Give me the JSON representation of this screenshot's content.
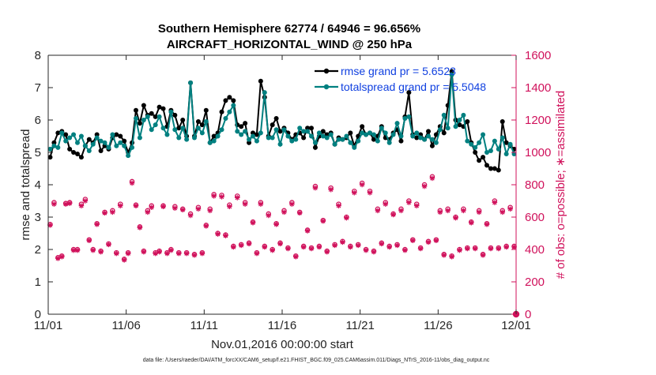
{
  "chart_data": {
    "type": "line",
    "title_line1": "Southern Hemisphere 62774 / 64946 = 96.656%",
    "title_line2": "AIRCRAFT_HORIZONTAL_WIND @ 250 hPa",
    "xlabel": "Nov.01,2016 00:00:00 start",
    "ylabel_left": "rmse and totalspread",
    "ylabel_right": "# of obs: o=possible; ∗=assimilated",
    "footer": "data file: /Users/raeder/DAI/ATM_forcXX/CAM6_setup/f.e21.FHIST_BGC.f09_025.CAM6assim.011/Diags_NTrS_2016-11/obs_diag_output.nc",
    "xlim": [
      0,
      30
    ],
    "ylim_left": [
      0,
      8
    ],
    "ylim_right": [
      0,
      1600
    ],
    "xticks": [
      0,
      5,
      10,
      15,
      20,
      25,
      30
    ],
    "xtick_labels": [
      "11/01",
      "11/06",
      "11/11",
      "11/16",
      "11/21",
      "11/26",
      "12/01"
    ],
    "yticks_left": [
      0,
      1,
      2,
      3,
      4,
      5,
      6,
      7,
      8
    ],
    "yticks_right": [
      0,
      200,
      400,
      600,
      800,
      1000,
      1200,
      1400,
      1600
    ],
    "legend": [
      {
        "name": "rmse",
        "label": "rmse grand pr = 5.6523"
      },
      {
        "name": "totalspread",
        "label": "totalspread grand pr = 5.5048"
      }
    ],
    "colors": {
      "rmse": "#000000",
      "totalspread": "#008080",
      "obs": "#d0115b",
      "legend_text": "#1040e0"
    },
    "x": [
      0.125,
      0.375,
      0.625,
      0.875,
      1.125,
      1.375,
      1.625,
      1.875,
      2.125,
      2.375,
      2.625,
      2.875,
      3.125,
      3.375,
      3.625,
      3.875,
      4.125,
      4.375,
      4.625,
      4.875,
      5.125,
      5.375,
      5.625,
      5.875,
      6.125,
      6.375,
      6.625,
      6.875,
      7.125,
      7.375,
      7.625,
      7.875,
      8.125,
      8.375,
      8.625,
      8.875,
      9.125,
      9.375,
      9.625,
      9.875,
      10.125,
      10.375,
      10.625,
      10.875,
      11.125,
      11.375,
      11.625,
      11.875,
      12.125,
      12.375,
      12.625,
      12.875,
      13.125,
      13.375,
      13.625,
      13.875,
      14.125,
      14.375,
      14.625,
      14.875,
      15.125,
      15.375,
      15.625,
      15.875,
      16.125,
      16.375,
      16.625,
      16.875,
      17.125,
      17.375,
      17.625,
      17.875,
      18.125,
      18.375,
      18.625,
      18.875,
      19.125,
      19.375,
      19.625,
      19.875,
      20.125,
      20.375,
      20.625,
      20.875,
      21.125,
      21.375,
      21.625,
      21.875,
      22.125,
      22.375,
      22.625,
      22.875,
      23.125,
      23.375,
      23.625,
      23.875,
      24.125,
      24.375,
      24.625,
      24.875,
      25.125,
      25.375,
      25.625,
      25.875,
      26.125,
      26.375,
      26.625,
      26.875,
      27.125,
      27.375,
      27.625,
      27.875,
      28.125,
      28.375,
      28.625,
      28.875,
      29.125,
      29.375,
      29.625,
      29.875
    ],
    "series": [
      {
        "name": "rmse",
        "axis": "left",
        "values": [
          4.85,
          5.3,
          5.6,
          5.65,
          5.55,
          5.1,
          5.0,
          4.95,
          4.85,
          5.2,
          5.4,
          5.3,
          5.55,
          5.05,
          5.2,
          5.1,
          5.45,
          5.55,
          5.5,
          5.35,
          5.0,
          5.3,
          6.3,
          5.9,
          6.45,
          6.15,
          6.2,
          6.1,
          6.4,
          6.35,
          5.8,
          6.3,
          6.15,
          5.75,
          6.0,
          5.5,
          7.15,
          5.5,
          5.95,
          5.85,
          6.3,
          5.3,
          5.5,
          5.6,
          6.25,
          6.6,
          6.7,
          6.6,
          5.85,
          5.8,
          5.9,
          5.3,
          5.6,
          5.55,
          7.2,
          6.7,
          5.5,
          5.85,
          6.05,
          5.65,
          5.75,
          5.6,
          5.4,
          5.55,
          5.6,
          5.45,
          5.75,
          5.75,
          5.15,
          5.5,
          5.65,
          5.55,
          5.6,
          5.25,
          5.45,
          5.4,
          5.45,
          5.6,
          5.2,
          5.5,
          5.8,
          5.55,
          5.6,
          5.4,
          5.5,
          5.8,
          5.45,
          5.4,
          5.6,
          5.7,
          5.35,
          6.1,
          6.85,
          5.55,
          5.45,
          5.55,
          5.4,
          5.65,
          5.2,
          5.55,
          5.8,
          5.6,
          6.45,
          7.5,
          6.0,
          5.85,
          5.8,
          5.95,
          5.3,
          5.0,
          4.75,
          4.85,
          4.6,
          4.5,
          4.5,
          4.45,
          5.95,
          5.3,
          5.2,
          5.1
        ]
      },
      {
        "name": "totalspread",
        "axis": "left",
        "values": [
          5.1,
          5.2,
          5.15,
          5.6,
          5.35,
          5.45,
          5.55,
          5.3,
          5.5,
          5.2,
          5.05,
          5.25,
          5.45,
          5.35,
          5.3,
          5.15,
          5.55,
          5.2,
          5.3,
          5.2,
          4.9,
          5.15,
          6.05,
          5.45,
          6.0,
          6.1,
          5.7,
          5.85,
          6.1,
          5.75,
          5.55,
          6.25,
          5.7,
          5.45,
          5.75,
          5.4,
          7.15,
          5.45,
          5.75,
          5.6,
          5.95,
          5.3,
          5.35,
          5.5,
          5.7,
          6.05,
          6.25,
          6.45,
          5.65,
          5.55,
          5.65,
          5.4,
          5.5,
          5.35,
          5.6,
          6.85,
          5.45,
          5.45,
          5.7,
          5.25,
          5.7,
          5.5,
          5.35,
          5.4,
          5.75,
          5.65,
          5.65,
          5.5,
          5.3,
          5.6,
          5.5,
          5.45,
          5.55,
          5.25,
          5.4,
          5.4,
          5.5,
          5.3,
          5.15,
          5.35,
          5.6,
          5.55,
          5.6,
          5.55,
          5.35,
          5.75,
          5.6,
          5.3,
          5.55,
          5.9,
          5.5,
          6.05,
          6.1,
          5.5,
          5.6,
          5.45,
          5.4,
          5.5,
          5.4,
          5.3,
          5.7,
          6.15,
          5.75,
          7.4,
          5.8,
          6.0,
          6.15,
          5.35,
          5.25,
          5.15,
          5.3,
          5.55,
          5.0,
          5.05,
          5.35,
          5.1,
          5.45,
          4.95,
          5.25,
          4.95
        ]
      },
      {
        "name": "obs_possible",
        "axis": "right",
        "marker": "o",
        "values": [
          555,
          690,
          350,
          360,
          685,
          690,
          400,
          400,
          680,
          710,
          460,
          400,
          560,
          390,
          630,
          435,
          640,
          380,
          680,
          340,
          380,
          820,
          675,
          540,
          390,
          640,
          670,
          380,
          390,
          670,
          380,
          400,
          665,
          380,
          650,
          380,
          620,
          370,
          660,
          380,
          550,
          650,
          740,
          500,
          735,
          490,
          675,
          420,
          730,
          430,
          690,
          440,
          570,
          380,
          690,
          420,
          620,
          400,
          560,
          440,
          640,
          410,
          690,
          360,
          630,
          420,
          520,
          410,
          790,
          420,
          580,
          390,
          780,
          430,
          680,
          450,
          600,
          420,
          760,
          430,
          810,
          400,
          760,
          390,
          650,
          440,
          690,
          420,
          620,
          430,
          650,
          400,
          700,
          460,
          680,
          410,
          800,
          450,
          850,
          460,
          640,
          370,
          650,
          360,
          600,
          400,
          650,
          410,
          570,
          410,
          640,
          370,
          560,
          410,
          700,
          410,
          640,
          420,
          660,
          420
        ]
      },
      {
        "name": "obs_assimilated",
        "axis": "right",
        "marker": "*",
        "values": [
          550,
          680,
          345,
          355,
          680,
          685,
          395,
          395,
          670,
          700,
          455,
          395,
          555,
          385,
          625,
          430,
          630,
          375,
          670,
          335,
          375,
          810,
          670,
          535,
          385,
          630,
          660,
          375,
          385,
          665,
          375,
          395,
          655,
          375,
          645,
          375,
          610,
          365,
          650,
          375,
          545,
          640,
          730,
          495,
          725,
          485,
          665,
          415,
          720,
          425,
          680,
          435,
          565,
          375,
          680,
          415,
          610,
          395,
          555,
          435,
          630,
          405,
          680,
          355,
          625,
          415,
          515,
          405,
          780,
          415,
          575,
          385,
          770,
          425,
          670,
          445,
          595,
          415,
          750,
          425,
          800,
          395,
          750,
          385,
          640,
          435,
          680,
          415,
          615,
          425,
          640,
          395,
          690,
          455,
          670,
          405,
          790,
          445,
          840,
          455,
          630,
          365,
          640,
          355,
          595,
          395,
          640,
          405,
          565,
          405,
          630,
          365,
          555,
          405,
          690,
          405,
          630,
          415,
          650,
          415
        ]
      }
    ],
    "endpoint_marker": {
      "x": 30,
      "value": 0
    }
  }
}
